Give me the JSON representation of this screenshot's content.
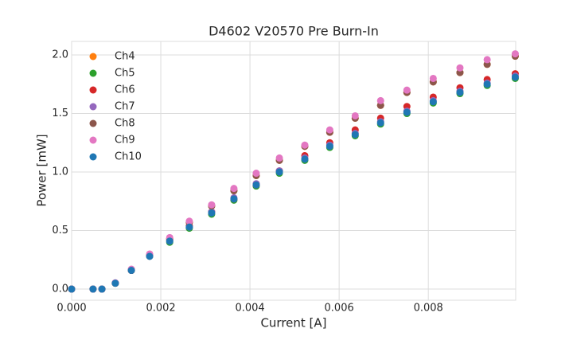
{
  "chart_data": {
    "type": "scatter",
    "title": "D4602 V20570 Pre Burn-In",
    "x_label": "Current [A]",
    "y_label": "Power [mW]",
    "x": [
      0,
      0.00048,
      0.00068,
      0.00098,
      0.00134,
      0.00175,
      0.0022,
      0.00264,
      0.00314,
      0.00364,
      0.00414,
      0.00466,
      0.00523,
      0.00579,
      0.00636,
      0.00693,
      0.00752,
      0.00811,
      0.00871,
      0.00932,
      0.00995
    ],
    "series": [
      {
        "name": "Ch4",
        "color": "#ff7f0e",
        "values": [
          0,
          0,
          0,
          0.05,
          0.16,
          0.29,
          0.43,
          0.57,
          0.71,
          0.84,
          0.97,
          1.1,
          1.22,
          1.34,
          1.46,
          1.57,
          1.68,
          1.77,
          1.85,
          1.92,
          1.99
        ]
      },
      {
        "name": "Ch5",
        "color": "#2ca02c",
        "values": [
          0,
          0,
          0,
          0.05,
          0.16,
          0.28,
          0.4,
          0.52,
          0.64,
          0.76,
          0.88,
          0.99,
          1.1,
          1.21,
          1.31,
          1.41,
          1.5,
          1.59,
          1.67,
          1.74,
          1.8
        ]
      },
      {
        "name": "Ch6",
        "color": "#d62728",
        "values": [
          0,
          0,
          0,
          0.05,
          0.16,
          0.29,
          0.42,
          0.54,
          0.66,
          0.77,
          0.89,
          1.01,
          1.14,
          1.25,
          1.36,
          1.46,
          1.56,
          1.64,
          1.72,
          1.79,
          1.84
        ]
      },
      {
        "name": "Ch7",
        "color": "#9467bd",
        "values": [
          0,
          0,
          0,
          0.05,
          0.16,
          0.28,
          0.41,
          0.53,
          0.66,
          0.78,
          0.9,
          1.01,
          1.12,
          1.23,
          1.33,
          1.43,
          1.52,
          1.61,
          1.69,
          1.76,
          1.82
        ]
      },
      {
        "name": "Ch8",
        "color": "#8c564b",
        "values": [
          0,
          0,
          0,
          0.05,
          0.16,
          0.29,
          0.43,
          0.57,
          0.71,
          0.84,
          0.97,
          1.1,
          1.22,
          1.34,
          1.46,
          1.57,
          1.68,
          1.77,
          1.85,
          1.92,
          1.99
        ]
      },
      {
        "name": "Ch9",
        "color": "#e377c2",
        "values": [
          0,
          0,
          0,
          0.054,
          0.17,
          0.3,
          0.44,
          0.58,
          0.72,
          0.86,
          0.99,
          1.12,
          1.23,
          1.36,
          1.48,
          1.61,
          1.7,
          1.8,
          1.89,
          1.96,
          2.01
        ]
      },
      {
        "name": "Ch10",
        "color": "#1f77b4",
        "values": [
          0,
          0,
          0,
          0.05,
          0.16,
          0.28,
          0.41,
          0.53,
          0.65,
          0.77,
          0.89,
          1.0,
          1.11,
          1.22,
          1.32,
          1.42,
          1.51,
          1.6,
          1.68,
          1.75,
          1.81
        ]
      }
    ],
    "xlim": [
      0,
      0.00996
    ],
    "ylim": [
      -0.095,
      2.116
    ],
    "xticks": [
      {
        "value": 0,
        "label": "0.000"
      },
      {
        "value": 0.002,
        "label": "0.002"
      },
      {
        "value": 0.004,
        "label": "0.004"
      },
      {
        "value": 0.006,
        "label": "0.006"
      },
      {
        "value": 0.008,
        "label": "0.008"
      }
    ],
    "yticks": [
      {
        "value": 0,
        "label": "0.0"
      },
      {
        "value": 0.5,
        "label": "0.5"
      },
      {
        "value": 1,
        "label": "1.0"
      },
      {
        "value": 1.5,
        "label": "1.5"
      },
      {
        "value": 2,
        "label": "2.0"
      }
    ],
    "grid": true,
    "legend": "upper-left"
  }
}
